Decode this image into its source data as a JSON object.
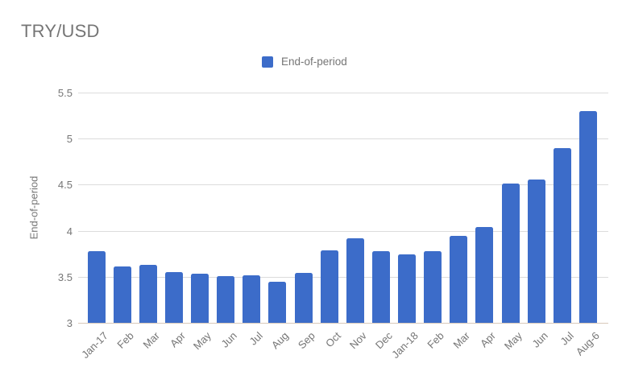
{
  "header": {
    "title": "TRY/USD"
  },
  "legend": {
    "label": "End-of-period"
  },
  "y_axis": {
    "title": "End-of-period"
  },
  "colors": {
    "bar": "#3c6cc9",
    "title_text": "#757575",
    "axis_text": "#757575",
    "gridline": "#dcdcdc",
    "baseline": "#d8c9ba",
    "background": "#ffffff"
  },
  "chart_data": {
    "type": "bar",
    "title": "TRY/USD",
    "series_name": "End-of-period",
    "categories": [
      "Jan-17",
      "Feb",
      "Mar",
      "Apr",
      "May",
      "Jun",
      "Jul",
      "Aug",
      "Sep",
      "Oct",
      "Nov",
      "Dec",
      "Jan-18",
      "Feb",
      "Mar",
      "Apr",
      "May",
      "Jun",
      "Jul",
      "Aug-6"
    ],
    "values": [
      3.78,
      3.61,
      3.63,
      3.55,
      3.53,
      3.51,
      3.52,
      3.45,
      3.54,
      3.79,
      3.92,
      3.78,
      3.74,
      3.78,
      3.94,
      4.04,
      4.51,
      4.56,
      4.9,
      5.3
    ],
    "xlabel": "",
    "ylabel": "End-of-period",
    "ylim": [
      3,
      5.5
    ],
    "ytick_step": 0.5,
    "ytick_labels": [
      "5.5",
      "5",
      "4.5",
      "4",
      "3.5",
      "3"
    ],
    "grid": true,
    "legend_position": "top-center",
    "bar_color": "#3c6cc9"
  }
}
